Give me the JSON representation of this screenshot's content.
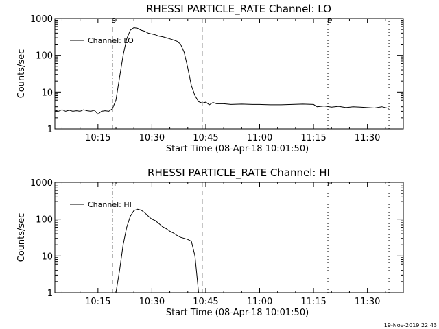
{
  "timestamp": "19-Nov-2019 22:43",
  "chart_data": [
    {
      "type": "line",
      "title": "RHESSI PARTICLE_RATE Channel: LO",
      "xlabel": "Start Time (08-Apr-18 10:01:50)",
      "ylabel": "Counts/sec",
      "yscale": "log",
      "ylim": [
        1,
        1000
      ],
      "yticks": [
        {
          "value": 1,
          "label": "1"
        },
        {
          "value": 10,
          "label": "10"
        },
        {
          "value": 100,
          "label": "100"
        },
        {
          "value": 1000,
          "label": "1000"
        }
      ],
      "xlim": [
        "10:03",
        "11:40"
      ],
      "xticks": [
        "10:15",
        "10:30",
        "10:45",
        "11:00",
        "11:15",
        "11:30"
      ],
      "legend": {
        "placement": "top-left",
        "label": "Channel: LO"
      },
      "markers": [
        {
          "time": "10:19",
          "style": "dashdot",
          "label": "S"
        },
        {
          "time": "10:44",
          "style": "dashed",
          "label": ""
        },
        {
          "time": "11:19",
          "style": "dotted",
          "label": "E"
        },
        {
          "time": "11:36",
          "style": "dotted",
          "label": ""
        }
      ],
      "series": [
        {
          "name": "Channel: LO",
          "x": [
            "10:03",
            "10:04",
            "10:05",
            "10:06",
            "10:07",
            "10:08",
            "10:09",
            "10:10",
            "10:11",
            "10:12",
            "10:13",
            "10:14",
            "10:15",
            "10:16",
            "10:17",
            "10:18",
            "10:19",
            "10:20",
            "10:21",
            "10:22",
            "10:23",
            "10:24",
            "10:25",
            "10:26",
            "10:27",
            "10:28",
            "10:29",
            "10:30",
            "10:31",
            "10:32",
            "10:33",
            "10:34",
            "10:35",
            "10:36",
            "10:37",
            "10:38",
            "10:39",
            "10:40",
            "10:41",
            "10:42",
            "10:43",
            "10:44",
            "10:45",
            "10:46",
            "10:47",
            "10:48",
            "10:50",
            "10:52",
            "10:55",
            "10:58",
            "11:00",
            "11:03",
            "11:06",
            "11:09",
            "11:12",
            "11:15",
            "11:16",
            "11:18",
            "11:20",
            "11:22",
            "11:24",
            "11:26",
            "11:28",
            "11:30",
            "11:32",
            "11:34",
            "11:36"
          ],
          "y": [
            3.2,
            3,
            3.3,
            3,
            3.2,
            3,
            3.1,
            3,
            3.3,
            3.1,
            3,
            3.2,
            2.5,
            3,
            3.1,
            3,
            3.5,
            6,
            25,
            100,
            280,
            480,
            560,
            540,
            480,
            450,
            400,
            380,
            360,
            330,
            320,
            300,
            280,
            260,
            240,
            200,
            120,
            45,
            15,
            8,
            5.5,
            5,
            5.3,
            4.5,
            5.2,
            4.8,
            4.8,
            4.6,
            4.7,
            4.6,
            4.6,
            4.5,
            4.5,
            4.6,
            4.7,
            4.6,
            4,
            4.2,
            3.9,
            4.1,
            3.8,
            4,
            3.9,
            3.8,
            3.7,
            4,
            3.6
          ]
        }
      ]
    },
    {
      "type": "line",
      "title": "RHESSI PARTICLE_RATE Channel: HI",
      "xlabel": "Start Time (08-Apr-18 10:01:50)",
      "ylabel": "Counts/sec",
      "yscale": "log",
      "ylim": [
        1,
        1000
      ],
      "yticks": [
        {
          "value": 1,
          "label": "1"
        },
        {
          "value": 10,
          "label": "10"
        },
        {
          "value": 100,
          "label": "100"
        },
        {
          "value": 1000,
          "label": "1000"
        }
      ],
      "xlim": [
        "10:03",
        "11:40"
      ],
      "xticks": [
        "10:15",
        "10:30",
        "10:45",
        "11:00",
        "11:15",
        "11:30"
      ],
      "legend": {
        "placement": "top-left",
        "label": "Channel: HI"
      },
      "markers": [
        {
          "time": "10:19",
          "style": "dashdot",
          "label": "S"
        },
        {
          "time": "10:44",
          "style": "dashed",
          "label": ""
        },
        {
          "time": "11:19",
          "style": "dotted",
          "label": "E"
        },
        {
          "time": "11:36",
          "style": "dotted",
          "label": ""
        }
      ],
      "series": [
        {
          "name": "Channel: HI",
          "x": [
            "10:20",
            "10:21",
            "10:22",
            "10:23",
            "10:24",
            "10:25",
            "10:26",
            "10:27",
            "10:28",
            "10:29",
            "10:30",
            "10:31",
            "10:32",
            "10:33",
            "10:34",
            "10:35",
            "10:36",
            "10:37",
            "10:38",
            "10:39",
            "10:40",
            "10:41",
            "10:42",
            "10:43"
          ],
          "y": [
            1,
            4,
            20,
            60,
            120,
            170,
            185,
            175,
            150,
            120,
            100,
            90,
            75,
            62,
            55,
            47,
            42,
            36,
            32,
            30,
            28,
            25,
            10,
            1
          ]
        }
      ]
    }
  ]
}
